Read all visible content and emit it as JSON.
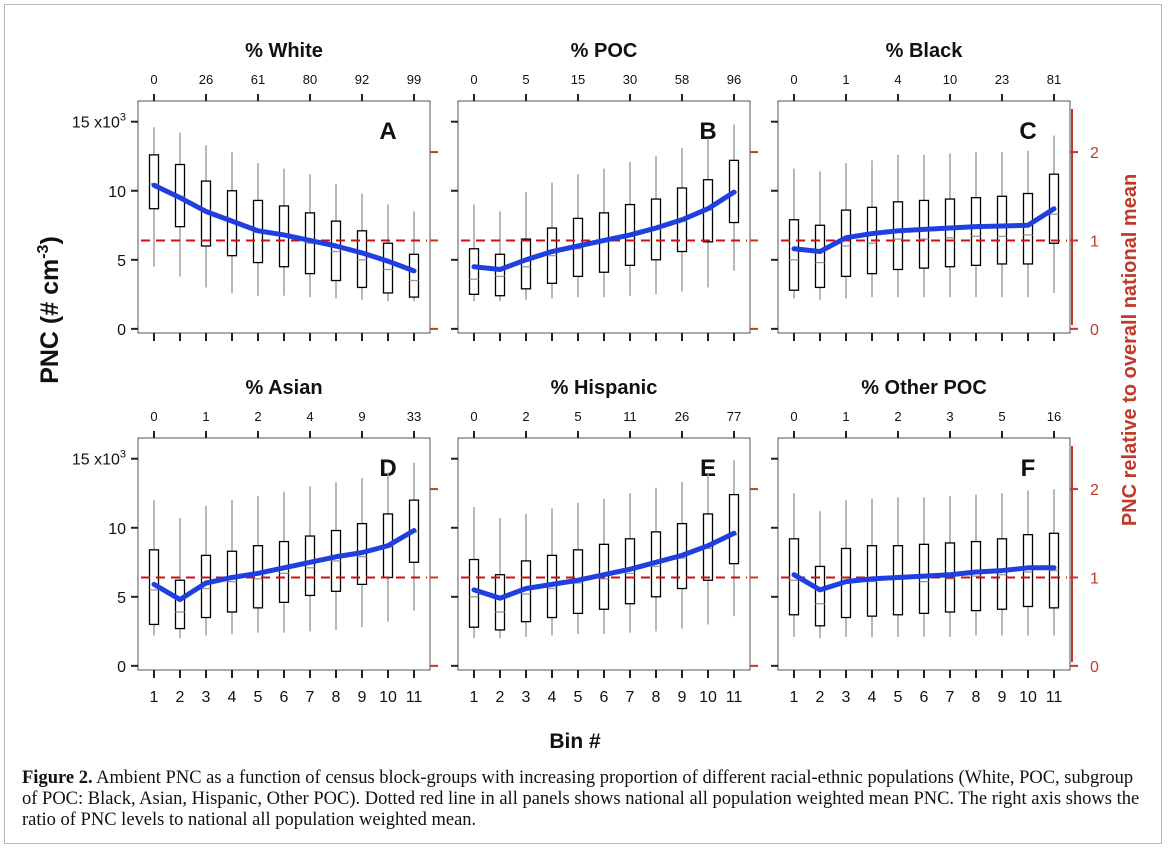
{
  "figure": {
    "caption_label": "Figure 2.",
    "caption_text": " Ambient PNC as a function of census block-groups with increasing proportion of different racial-ethnic populations (White, POC, subgroup of POC: Black, Asian, Hispanic, Other POC). Dotted red line in all panels shows national all population weighted mean PNC. The right axis shows the ratio of PNC levels to national all population weighted mean."
  },
  "chart_data": {
    "type": "box",
    "y_label": "PNC (# cm",
    "y_label_exponent": "-3",
    "right_axis_label": "PNC relative to overall national mean",
    "x_label": "Bin #",
    "bin_ticks": [
      "1",
      "2",
      "3",
      "4",
      "5",
      "6",
      "7",
      "8",
      "9",
      "10",
      "11"
    ],
    "left_ticks": [
      "0",
      "5",
      "10",
      "15 x10"
    ],
    "left_tick_exponent": "3",
    "left_tick_values": [
      0,
      5,
      10,
      15
    ],
    "right_ticks": [
      "0",
      "1",
      "2"
    ],
    "right_tick_values": [
      0,
      1,
      2
    ],
    "ylim": [
      -0.3,
      16.5
    ],
    "national_mean_pnc": 6.4,
    "colors": {
      "trend": "#1f3fe0",
      "mean_line": "#cc1111",
      "right_axis": "#c0392b",
      "box": "#000000",
      "whisker": "#9a9a9a"
    },
    "panels": [
      {
        "title": "% White",
        "letter": "A",
        "top_ticks": [
          "0",
          "26",
          "61",
          "80",
          "92",
          "99"
        ],
        "boxes": [
          {
            "lw": 4.5,
            "q1": 8.7,
            "med": 10.5,
            "q3": 12.6,
            "uw": 14.6
          },
          {
            "lw": 3.8,
            "q1": 7.4,
            "med": 9.6,
            "q3": 11.9,
            "uw": 14.2
          },
          {
            "lw": 3.0,
            "q1": 6.0,
            "med": 8.6,
            "q3": 10.7,
            "uw": 13.3
          },
          {
            "lw": 2.6,
            "q1": 5.3,
            "med": 7.8,
            "q3": 10.0,
            "uw": 12.8
          },
          {
            "lw": 2.4,
            "q1": 4.8,
            "med": 7.0,
            "q3": 9.3,
            "uw": 12.0
          },
          {
            "lw": 2.4,
            "q1": 4.5,
            "med": 6.7,
            "q3": 8.9,
            "uw": 11.6
          },
          {
            "lw": 2.3,
            "q1": 4.0,
            "med": 6.2,
            "q3": 8.4,
            "uw": 11.2
          },
          {
            "lw": 2.2,
            "q1": 3.5,
            "med": 5.6,
            "q3": 7.8,
            "uw": 10.5
          },
          {
            "lw": 2.1,
            "q1": 3.0,
            "med": 5.0,
            "q3": 7.1,
            "uw": 9.8
          },
          {
            "lw": 2.0,
            "q1": 2.6,
            "med": 4.3,
            "q3": 6.2,
            "uw": 9.0
          },
          {
            "lw": 2.0,
            "q1": 2.3,
            "med": 3.5,
            "q3": 5.4,
            "uw": 8.5
          }
        ],
        "trend": [
          10.4,
          9.5,
          8.5,
          7.8,
          7.1,
          6.8,
          6.4,
          6.0,
          5.5,
          4.9,
          4.2
        ]
      },
      {
        "title": "% POC",
        "letter": "B",
        "top_ticks": [
          "0",
          "5",
          "15",
          "30",
          "58",
          "96"
        ],
        "boxes": [
          {
            "lw": 2.0,
            "q1": 2.5,
            "med": 3.6,
            "q3": 5.8,
            "uw": 9.0
          },
          {
            "lw": 2.0,
            "q1": 2.4,
            "med": 3.8,
            "q3": 5.4,
            "uw": 8.5
          },
          {
            "lw": 2.1,
            "q1": 2.9,
            "med": 4.5,
            "q3": 6.5,
            "uw": 9.9
          },
          {
            "lw": 2.2,
            "q1": 3.3,
            "med": 5.3,
            "q3": 7.3,
            "uw": 10.6
          },
          {
            "lw": 2.3,
            "q1": 3.8,
            "med": 5.8,
            "q3": 8.0,
            "uw": 11.2
          },
          {
            "lw": 2.3,
            "q1": 4.1,
            "med": 6.3,
            "q3": 8.4,
            "uw": 11.6
          },
          {
            "lw": 2.4,
            "q1": 4.6,
            "med": 6.7,
            "q3": 9.0,
            "uw": 12.1
          },
          {
            "lw": 2.5,
            "q1": 5.0,
            "med": 7.2,
            "q3": 9.4,
            "uw": 12.5
          },
          {
            "lw": 2.7,
            "q1": 5.6,
            "med": 7.8,
            "q3": 10.2,
            "uw": 13.1
          },
          {
            "lw": 3.0,
            "q1": 6.3,
            "med": 8.6,
            "q3": 10.8,
            "uw": 13.8
          },
          {
            "lw": 4.2,
            "q1": 7.7,
            "med": 9.9,
            "q3": 12.2,
            "uw": 14.8
          }
        ],
        "trend": [
          4.5,
          4.3,
          5.0,
          5.6,
          6.0,
          6.4,
          6.8,
          7.3,
          7.9,
          8.7,
          9.9
        ]
      },
      {
        "title": "% Black",
        "letter": "C",
        "top_ticks": [
          "0",
          "1",
          "4",
          "10",
          "23",
          "81"
        ],
        "boxes": [
          {
            "lw": 2.2,
            "q1": 2.8,
            "med": 5.0,
            "q3": 7.9,
            "uw": 11.6
          },
          {
            "lw": 2.1,
            "q1": 3.0,
            "med": 4.8,
            "q3": 7.5,
            "uw": 11.4
          },
          {
            "lw": 2.2,
            "q1": 3.8,
            "med": 6.0,
            "q3": 8.6,
            "uw": 12.0
          },
          {
            "lw": 2.3,
            "q1": 4.0,
            "med": 6.2,
            "q3": 8.8,
            "uw": 12.2
          },
          {
            "lw": 2.3,
            "q1": 4.3,
            "med": 6.5,
            "q3": 9.2,
            "uw": 12.6
          },
          {
            "lw": 2.3,
            "q1": 4.4,
            "med": 6.5,
            "q3": 9.3,
            "uw": 12.6
          },
          {
            "lw": 2.3,
            "q1": 4.5,
            "med": 6.6,
            "q3": 9.4,
            "uw": 12.7
          },
          {
            "lw": 2.3,
            "q1": 4.6,
            "med": 6.7,
            "q3": 9.5,
            "uw": 12.8
          },
          {
            "lw": 2.3,
            "q1": 4.7,
            "med": 6.7,
            "q3": 9.6,
            "uw": 12.8
          },
          {
            "lw": 2.3,
            "q1": 4.7,
            "med": 6.8,
            "q3": 9.8,
            "uw": 12.9
          },
          {
            "lw": 2.6,
            "q1": 6.2,
            "med": 8.3,
            "q3": 11.2,
            "uw": 14.0
          }
        ],
        "trend": [
          5.8,
          5.6,
          6.6,
          6.9,
          7.1,
          7.2,
          7.3,
          7.4,
          7.45,
          7.5,
          8.7
        ]
      },
      {
        "title": "% Asian",
        "letter": "D",
        "top_ticks": [
          "0",
          "1",
          "2",
          "4",
          "9",
          "33"
        ],
        "boxes": [
          {
            "lw": 2.2,
            "q1": 3.0,
            "med": 5.5,
            "q3": 8.4,
            "uw": 12.0
          },
          {
            "lw": 2.0,
            "q1": 2.7,
            "med": 3.9,
            "q3": 6.2,
            "uw": 10.7
          },
          {
            "lw": 2.2,
            "q1": 3.5,
            "med": 5.6,
            "q3": 8.0,
            "uw": 11.6
          },
          {
            "lw": 2.3,
            "q1": 3.9,
            "med": 6.1,
            "q3": 8.3,
            "uw": 12.0
          },
          {
            "lw": 2.4,
            "q1": 4.2,
            "med": 6.3,
            "q3": 8.7,
            "uw": 12.3
          },
          {
            "lw": 2.4,
            "q1": 4.6,
            "med": 6.7,
            "q3": 9.0,
            "uw": 12.6
          },
          {
            "lw": 2.5,
            "q1": 5.1,
            "med": 7.1,
            "q3": 9.4,
            "uw": 13.0
          },
          {
            "lw": 2.6,
            "q1": 5.4,
            "med": 7.6,
            "q3": 9.8,
            "uw": 13.3
          },
          {
            "lw": 2.8,
            "q1": 5.9,
            "med": 7.9,
            "q3": 10.3,
            "uw": 13.6
          },
          {
            "lw": 3.2,
            "q1": 6.4,
            "med": 8.6,
            "q3": 11.0,
            "uw": 14.0
          },
          {
            "lw": 4.0,
            "q1": 7.5,
            "med": 9.7,
            "q3": 12.0,
            "uw": 14.7
          }
        ],
        "trend": [
          5.9,
          4.8,
          6.0,
          6.4,
          6.7,
          7.1,
          7.5,
          7.9,
          8.2,
          8.7,
          9.8
        ]
      },
      {
        "title": "% Hispanic",
        "letter": "E",
        "top_ticks": [
          "0",
          "2",
          "5",
          "11",
          "26",
          "77"
        ],
        "boxes": [
          {
            "lw": 2.0,
            "q1": 2.8,
            "med": 5.0,
            "q3": 7.7,
            "uw": 11.5
          },
          {
            "lw": 2.0,
            "q1": 2.6,
            "med": 3.9,
            "q3": 6.6,
            "uw": 10.7
          },
          {
            "lw": 2.1,
            "q1": 3.2,
            "med": 5.2,
            "q3": 7.6,
            "uw": 11.0
          },
          {
            "lw": 2.2,
            "q1": 3.5,
            "med": 5.6,
            "q3": 8.0,
            "uw": 11.4
          },
          {
            "lw": 2.3,
            "q1": 3.8,
            "med": 6.0,
            "q3": 8.4,
            "uw": 11.8
          },
          {
            "lw": 2.3,
            "q1": 4.1,
            "med": 6.3,
            "q3": 8.8,
            "uw": 12.1
          },
          {
            "lw": 2.4,
            "q1": 4.5,
            "med": 6.7,
            "q3": 9.2,
            "uw": 12.5
          },
          {
            "lw": 2.5,
            "q1": 5.0,
            "med": 7.2,
            "q3": 9.7,
            "uw": 12.9
          },
          {
            "lw": 2.7,
            "q1": 5.6,
            "med": 7.8,
            "q3": 10.3,
            "uw": 13.3
          },
          {
            "lw": 3.0,
            "q1": 6.2,
            "med": 8.5,
            "q3": 11.0,
            "uw": 13.9
          },
          {
            "lw": 3.6,
            "q1": 7.4,
            "med": 9.5,
            "q3": 12.4,
            "uw": 14.9
          }
        ],
        "trend": [
          5.5,
          4.9,
          5.6,
          5.9,
          6.2,
          6.6,
          7.0,
          7.5,
          8.0,
          8.7,
          9.6
        ]
      },
      {
        "title": "% Other POC",
        "letter": "F",
        "top_ticks": [
          "0",
          "1",
          "2",
          "3",
          "5",
          "16"
        ],
        "boxes": [
          {
            "lw": 2.1,
            "q1": 3.7,
            "med": 6.2,
            "q3": 9.2,
            "uw": 12.5
          },
          {
            "lw": 2.0,
            "q1": 2.9,
            "med": 4.5,
            "q3": 7.2,
            "uw": 11.2
          },
          {
            "lw": 2.1,
            "q1": 3.5,
            "med": 6.0,
            "q3": 8.5,
            "uw": 12.0
          },
          {
            "lw": 2.1,
            "q1": 3.6,
            "med": 6.1,
            "q3": 8.7,
            "uw": 12.1
          },
          {
            "lw": 2.1,
            "q1": 3.7,
            "med": 6.3,
            "q3": 8.7,
            "uw": 12.2
          },
          {
            "lw": 2.1,
            "q1": 3.8,
            "med": 6.1,
            "q3": 8.8,
            "uw": 12.2
          },
          {
            "lw": 2.1,
            "q1": 3.9,
            "med": 6.3,
            "q3": 8.9,
            "uw": 12.3
          },
          {
            "lw": 2.2,
            "q1": 4.0,
            "med": 6.5,
            "q3": 9.0,
            "uw": 12.4
          },
          {
            "lw": 2.2,
            "q1": 4.1,
            "med": 6.6,
            "q3": 9.2,
            "uw": 12.5
          },
          {
            "lw": 2.2,
            "q1": 4.3,
            "med": 6.8,
            "q3": 9.5,
            "uw": 12.7
          },
          {
            "lw": 2.2,
            "q1": 4.2,
            "med": 6.9,
            "q3": 9.6,
            "uw": 12.8
          }
        ],
        "trend": [
          6.6,
          5.5,
          6.1,
          6.3,
          6.4,
          6.5,
          6.6,
          6.8,
          6.9,
          7.1,
          7.1
        ]
      }
    ]
  }
}
